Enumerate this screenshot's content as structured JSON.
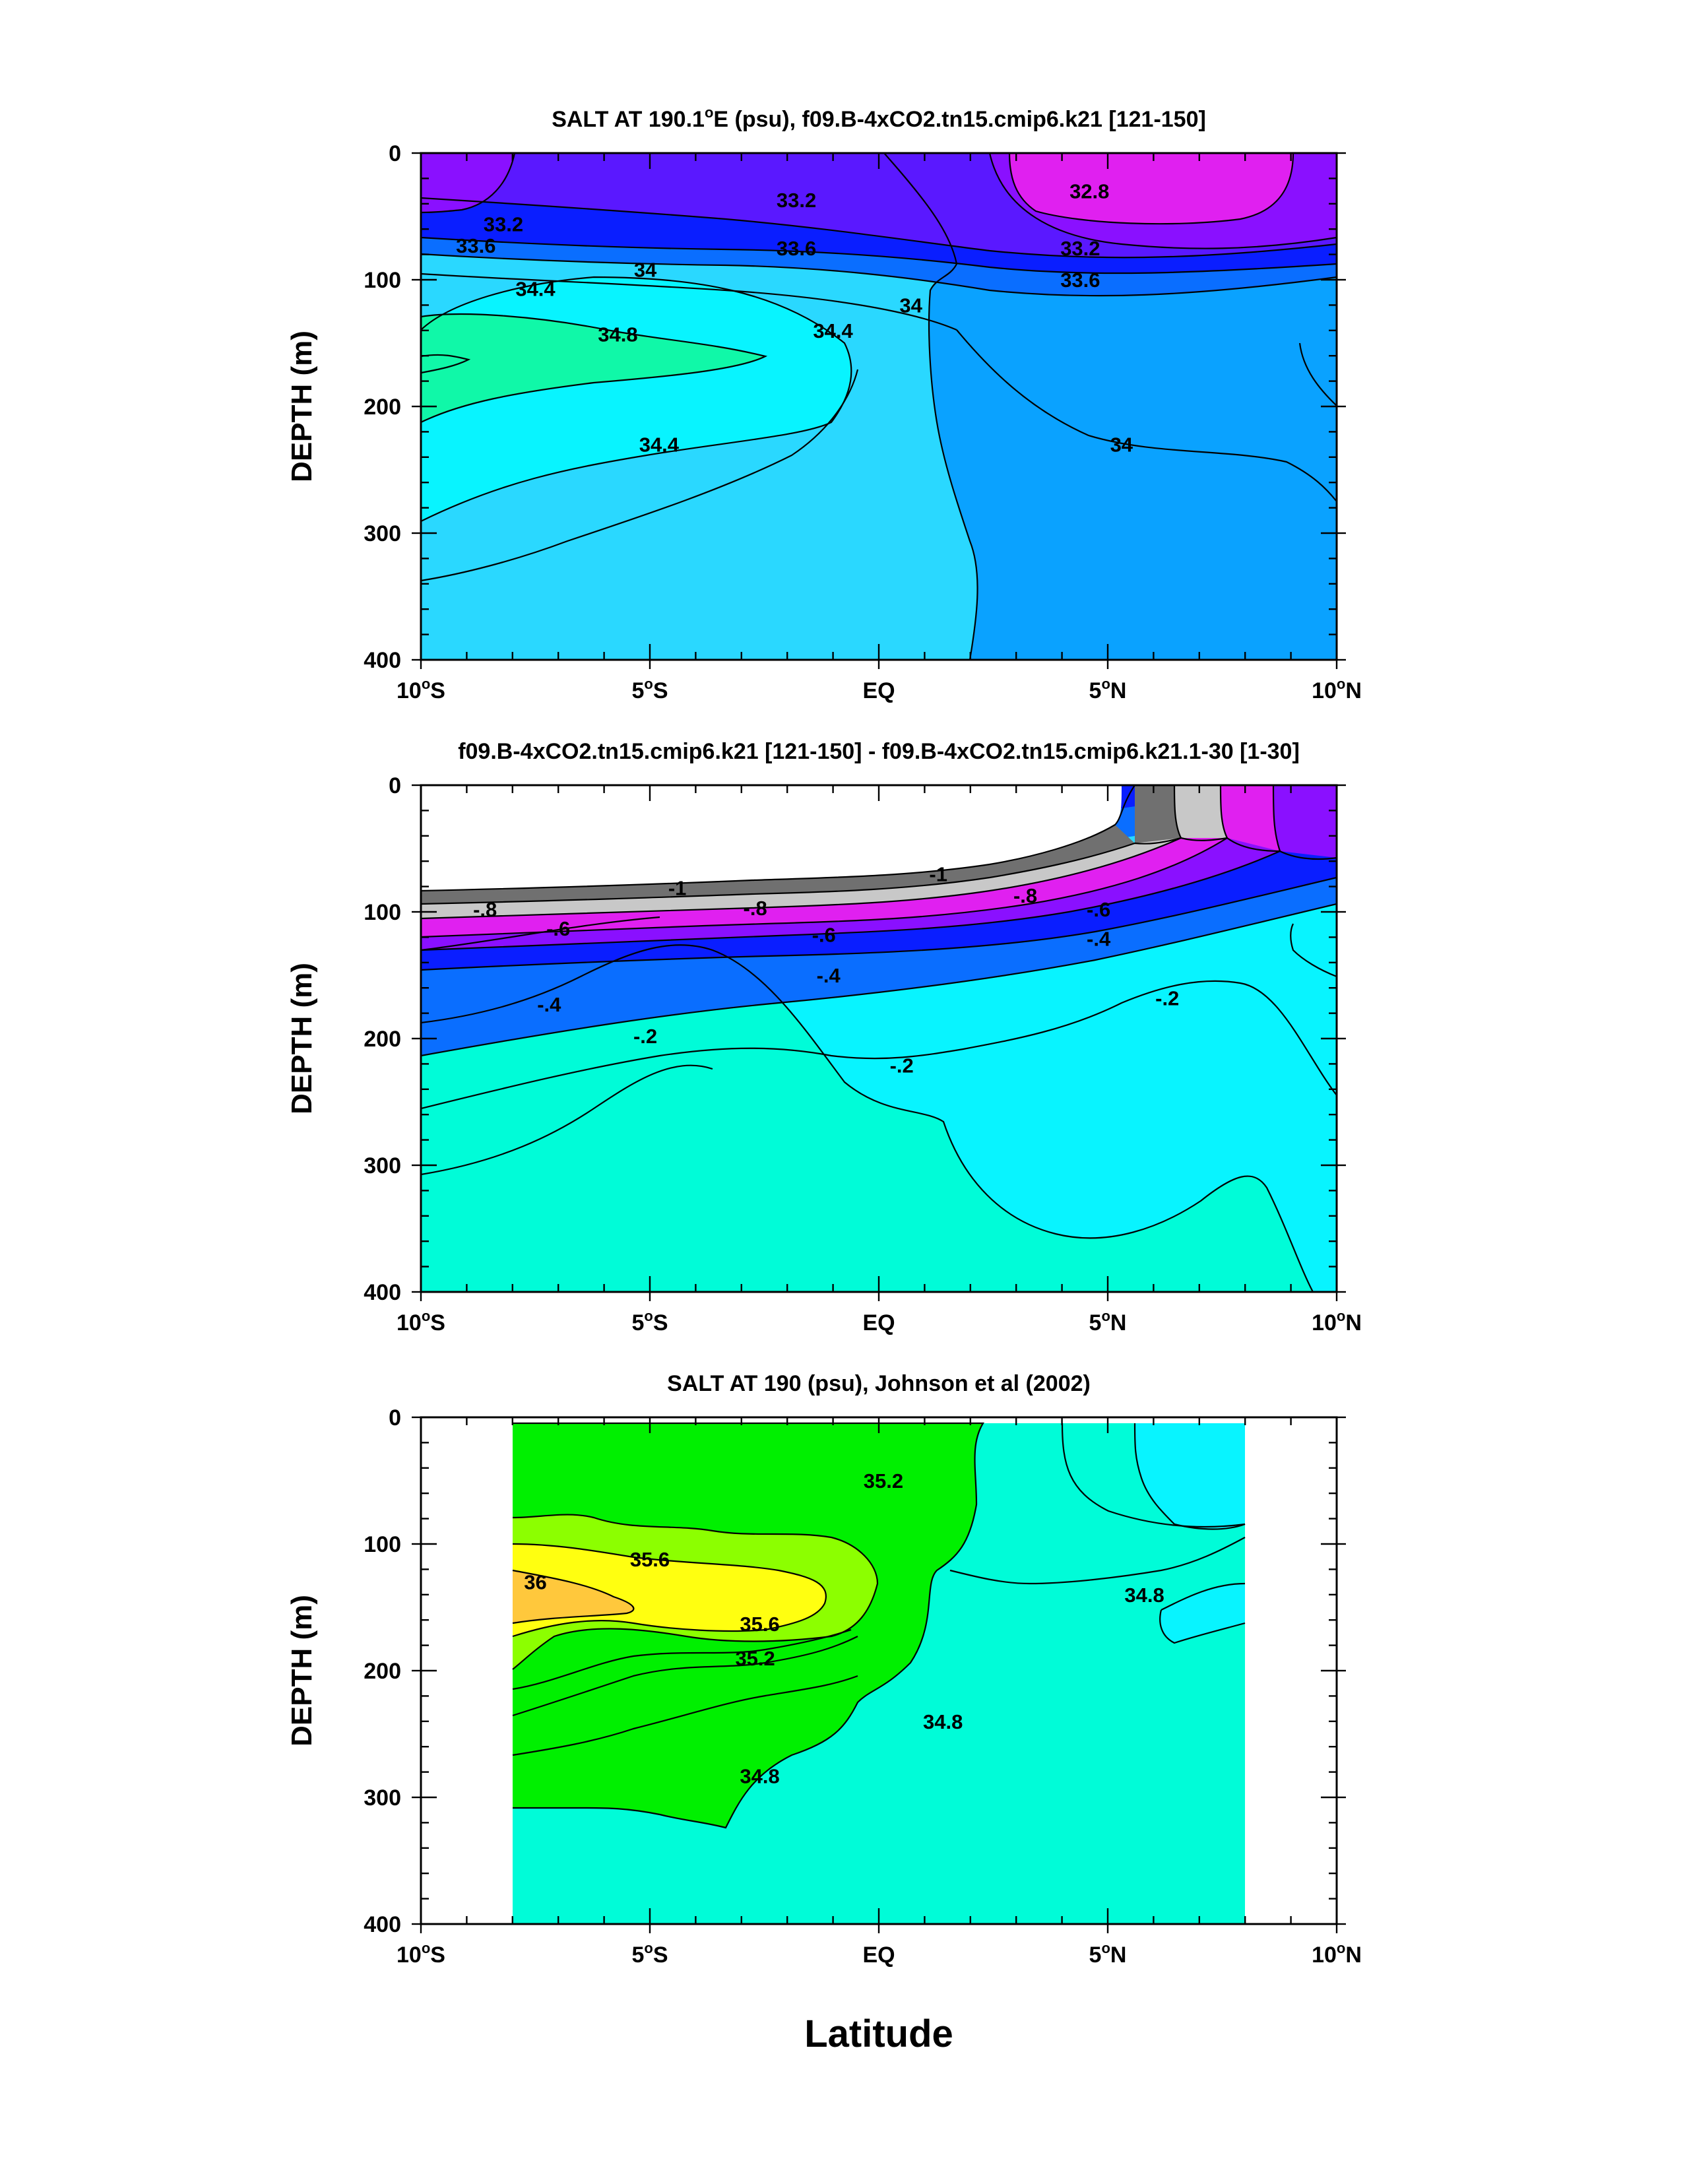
{
  "figure": {
    "xlabel": "Latitude",
    "colors": {
      "magenta": "#e020f0",
      "violet": "#8a10ff",
      "indigo": "#5a18ff",
      "blue": "#0a1eff",
      "azure": "#0a6eff",
      "medblue": "#0aa2ff",
      "skyblue": "#2ad8ff",
      "cyan": "#08f4ff",
      "aquagreen": "#00fcd8",
      "green": "#00f000",
      "lime": "#8cff00",
      "yellow": "#ffff10",
      "orange": "#ffc83c",
      "darkgray": "#707070",
      "lightgray": "#c8c8c8",
      "greencyan": "#10f8a8"
    }
  },
  "chart_data": [
    {
      "type": "heatmap",
      "title": "SALT AT 190.1°E (psu), f09.B-4xCO2.tn15.cmip6.k21 [121-150]",
      "title_parts": [
        "SALT AT 190.1",
        "E (psu), f09.B-4xCO2.tn15.cmip6.k21 [121-150]"
      ],
      "xlabel": "",
      "ylabel": "DEPTH (m)",
      "xlim": [
        -10,
        10
      ],
      "ylim": [
        400,
        0
      ],
      "x_ticks": [
        {
          "value": -10,
          "num": "10",
          "hem": "S"
        },
        {
          "value": -5,
          "num": "5",
          "hem": "S"
        },
        {
          "value": 0,
          "num": "EQ",
          "hem": ""
        },
        {
          "value": 5,
          "num": "5",
          "hem": "N"
        },
        {
          "value": 10,
          "num": "10",
          "hem": "N"
        }
      ],
      "y_ticks": [
        "0",
        "100",
        "200",
        "300",
        "400"
      ],
      "contour_labels": [
        {
          "text": "32.8",
          "x": 4.6,
          "y": 30
        },
        {
          "text": "33.2",
          "x": -1.8,
          "y": 37
        },
        {
          "text": "33.2",
          "x": -8.2,
          "y": 56
        },
        {
          "text": "33.6",
          "x": -8.8,
          "y": 73
        },
        {
          "text": "33.6",
          "x": -1.8,
          "y": 75
        },
        {
          "text": "33.2",
          "x": 4.4,
          "y": 75
        },
        {
          "text": "34",
          "x": -5.1,
          "y": 92
        },
        {
          "text": "33.6",
          "x": 4.4,
          "y": 100
        },
        {
          "text": "34.4",
          "x": -7.5,
          "y": 107
        },
        {
          "text": "34",
          "x": 0.7,
          "y": 120
        },
        {
          "text": "34.8",
          "x": -5.7,
          "y": 143
        },
        {
          "text": "34.4",
          "x": -1.0,
          "y": 140
        },
        {
          "text": "34.4",
          "x": -4.8,
          "y": 230
        },
        {
          "text": "34",
          "x": 5.3,
          "y": 230
        }
      ]
    },
    {
      "type": "heatmap",
      "title": "f09.B-4xCO2.tn15.cmip6.k21 [121-150] - f09.B-4xCO2.tn15.cmip6.k21.1-30 [1-30]",
      "xlabel": "",
      "ylabel": "DEPTH (m)",
      "xlim": [
        -10,
        10
      ],
      "ylim": [
        400,
        0
      ],
      "x_ticks": [
        {
          "value": -10,
          "num": "10",
          "hem": "S"
        },
        {
          "value": -5,
          "num": "5",
          "hem": "S"
        },
        {
          "value": 0,
          "num": "EQ",
          "hem": ""
        },
        {
          "value": 5,
          "num": "5",
          "hem": "N"
        },
        {
          "value": 10,
          "num": "10",
          "hem": "N"
        }
      ],
      "y_ticks": [
        "0",
        "100",
        "200",
        "300",
        "400"
      ],
      "contour_labels": [
        {
          "text": "-1",
          "x": -4.4,
          "y": 81
        },
        {
          "text": "-1",
          "x": 1.3,
          "y": 70
        },
        {
          "text": "-.8",
          "x": -8.6,
          "y": 98
        },
        {
          "text": "-.8",
          "x": -2.7,
          "y": 97
        },
        {
          "text": "-.8",
          "x": 3.2,
          "y": 87
        },
        {
          "text": "-.6",
          "x": -7.0,
          "y": 113
        },
        {
          "text": "-.6",
          "x": -1.2,
          "y": 118
        },
        {
          "text": "-.6",
          "x": 4.8,
          "y": 98
        },
        {
          "text": "-.4",
          "x": -1.1,
          "y": 150
        },
        {
          "text": "-.4",
          "x": 4.8,
          "y": 121
        },
        {
          "text": "-.4",
          "x": -7.2,
          "y": 173
        },
        {
          "text": "-.2",
          "x": -5.1,
          "y": 198
        },
        {
          "text": "-.2",
          "x": 0.5,
          "y": 221
        },
        {
          "text": "-.2",
          "x": 6.3,
          "y": 168
        }
      ]
    },
    {
      "type": "heatmap",
      "title": "SALT AT 190 (psu), Johnson et al (2002)",
      "xlabel": "Latitude",
      "ylabel": "DEPTH (m)",
      "xlim": [
        -10,
        10
      ],
      "ylim": [
        400,
        0
      ],
      "data_extent_lat": [
        -8,
        8
      ],
      "x_ticks": [
        {
          "value": -10,
          "num": "10",
          "hem": "S"
        },
        {
          "value": -5,
          "num": "5",
          "hem": "S"
        },
        {
          "value": 0,
          "num": "EQ",
          "hem": ""
        },
        {
          "value": 5,
          "num": "5",
          "hem": "N"
        },
        {
          "value": 10,
          "num": "10",
          "hem": "N"
        }
      ],
      "y_ticks": [
        "0",
        "100",
        "200",
        "300",
        "400"
      ],
      "contour_labels": [
        {
          "text": "35.2",
          "x": 0.1,
          "y": 50
        },
        {
          "text": "35.6",
          "x": -5.0,
          "y": 112
        },
        {
          "text": "36",
          "x": -7.5,
          "y": 130
        },
        {
          "text": "35.6",
          "x": -2.6,
          "y": 163
        },
        {
          "text": "35.2",
          "x": -2.7,
          "y": 190
        },
        {
          "text": "34.8",
          "x": 1.4,
          "y": 240
        },
        {
          "text": "34.8",
          "x": 5.8,
          "y": 140
        },
        {
          "text": "34.8",
          "x": -2.6,
          "y": 283
        }
      ]
    }
  ]
}
